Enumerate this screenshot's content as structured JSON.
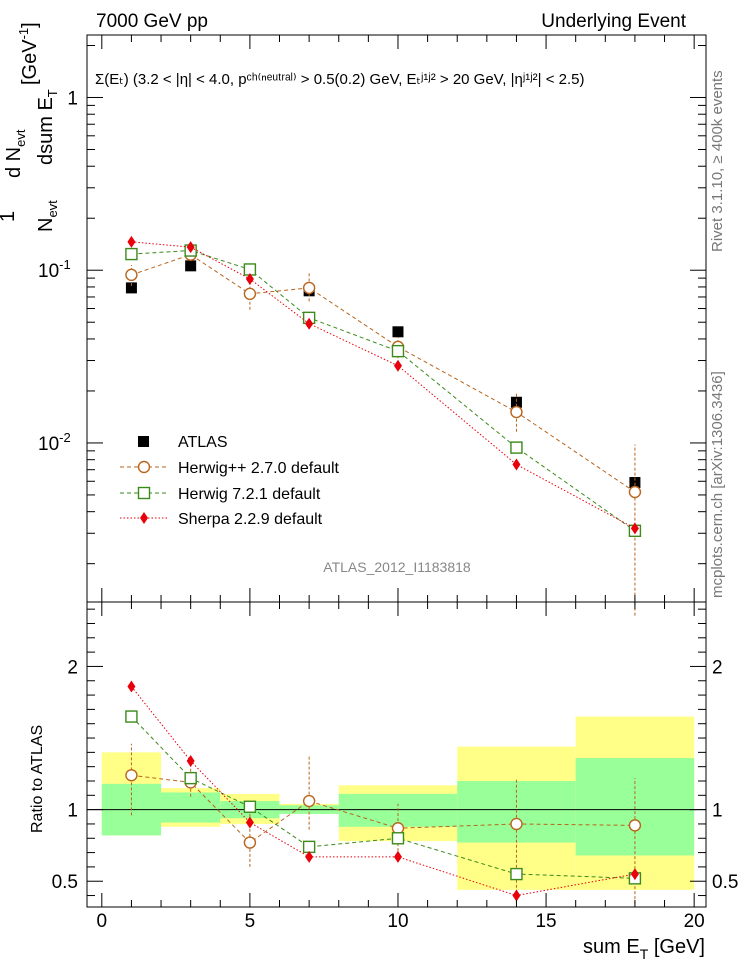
{
  "header": {
    "left": "7000 GeV pp",
    "right": "Underlying Event"
  },
  "side": {
    "rivet": "Rivet 3.1.10, ≥ 400k events",
    "mcplots": "mcplots.cern.ch [arXiv:1306.3436]"
  },
  "main": {
    "selection_text": "Σ(Eₜ) (3.2 < |η| < 4.0, pᶜʰ⁽ⁿᵉᵘᵗʳᵃˡ⁾ > 0.5(0.2) GeV, Eₜʲ¹ʲ² > 20 GeV, |ηʲ¹ʲ²| < 2.5)",
    "ylabel": "1/N_evt dN_evt/dsum E_T [GeV^-1]",
    "analysis_id": "ATLAS_2012_I1183818"
  },
  "ratio": {
    "ylabel": "Ratio to ATLAS"
  },
  "xaxis": {
    "label": "sum E_T [GeV]"
  },
  "legend": [
    {
      "key": "atlas",
      "label": "ATLAS"
    },
    {
      "key": "herwigpp",
      "label": "Herwig++ 2.7.0 default"
    },
    {
      "key": "herwig7",
      "label": "Herwig 7.2.1 default"
    },
    {
      "key": "sherpa",
      "label": "Sherpa 2.2.9 default"
    }
  ],
  "colors": {
    "atlas": "#000000",
    "herwigpp": "#b8651e",
    "herwig7": "#3b8a1a",
    "sherpa": "#e8000b",
    "band_inner": "#99ff99",
    "band_outer": "#ffff88",
    "analysis_id": "#888888",
    "side_text": "#777777"
  },
  "chart_data": {
    "type": "scatter",
    "x_bins": [
      [
        0,
        2
      ],
      [
        2,
        4
      ],
      [
        4,
        6
      ],
      [
        6,
        8
      ],
      [
        8,
        12
      ],
      [
        12,
        16
      ],
      [
        16,
        20
      ]
    ],
    "x": [
      1,
      3,
      5,
      7,
      10,
      14,
      18
    ],
    "xlim": [
      -0.5,
      20.4
    ],
    "xticks": [
      0,
      5,
      10,
      15,
      20
    ],
    "main": {
      "yscale": "log",
      "ylim": [
        0.0012,
        2.3
      ],
      "yticks": [
        {
          "v": 1,
          "label": "1"
        },
        {
          "v": 0.1,
          "label": "10^-1"
        },
        {
          "v": 0.01,
          "label": "10^-2"
        }
      ],
      "series": [
        {
          "name": "ATLAS",
          "key": "atlas",
          "marker": "square-filled",
          "values": [
            0.079,
            0.106,
            0.101,
            0.076,
            0.044,
            0.0172,
            0.0059
          ]
        },
        {
          "name": "Herwig++ 2.7.0 default",
          "key": "herwigpp",
          "marker": "circle-open",
          "line": "dashed",
          "values": [
            0.094,
            0.123,
            0.073,
            0.079,
            0.036,
            0.0151,
            0.0052
          ],
          "err_lo": [
            0.081,
            0.113,
            0.059,
            0.066,
            0.031,
            0.0116,
            0.001
          ],
          "err_hi": [
            0.107,
            0.133,
            0.087,
            0.097,
            0.041,
            0.0198,
            0.0098
          ]
        },
        {
          "name": "Herwig 7.2.1 default",
          "key": "herwig7",
          "marker": "square-open",
          "line": "dashed",
          "values": [
            0.124,
            0.13,
            0.101,
            0.053,
            0.034,
            0.0094,
            0.0031
          ]
        },
        {
          "name": "Sherpa 2.2.9 default",
          "key": "sherpa",
          "marker": "diamond-filled",
          "line": "dotted",
          "values": [
            0.146,
            0.136,
            0.089,
            0.049,
            0.028,
            0.0075,
            0.0032
          ]
        }
      ]
    },
    "ratio": {
      "ylim": [
        0.32,
        2.45
      ],
      "yticks": [
        0.5,
        1,
        2
      ],
      "band_inner": [
        [
          0.82,
          1.18
        ],
        [
          0.91,
          1.12
        ],
        [
          0.94,
          1.06
        ],
        [
          0.97,
          1.03
        ],
        [
          0.88,
          1.11
        ],
        [
          0.77,
          1.2
        ],
        [
          0.68,
          1.36
        ]
      ],
      "band_outer": [
        [
          0.82,
          1.4
        ],
        [
          0.88,
          1.15
        ],
        [
          0.9,
          1.11
        ],
        [
          0.97,
          1.04
        ],
        [
          0.78,
          1.17
        ],
        [
          0.44,
          1.44
        ],
        [
          0.44,
          1.65
        ]
      ],
      "series": [
        {
          "key": "herwigpp",
          "marker": "circle-open",
          "line": "dashed",
          "values": [
            1.24,
            1.19,
            0.77,
            1.06,
            0.87,
            0.9,
            0.89
          ],
          "err_lo": [
            0.96,
            1.09,
            0.6,
            0.86,
            0.71,
            0.35,
            0.34
          ],
          "err_hi": [
            1.46,
            1.37,
            0.97,
            1.37,
            1.04,
            1.22,
            1.22
          ]
        },
        {
          "key": "herwig7",
          "marker": "square-open",
          "line": "dashed",
          "values": [
            1.65,
            1.22,
            1.02,
            0.74,
            0.8,
            0.55,
            0.52
          ]
        },
        {
          "key": "sherpa",
          "marker": "diamond-filled",
          "line": "dotted",
          "values": [
            1.86,
            1.34,
            0.91,
            0.67,
            0.67,
            0.4,
            0.55
          ]
        }
      ]
    }
  }
}
